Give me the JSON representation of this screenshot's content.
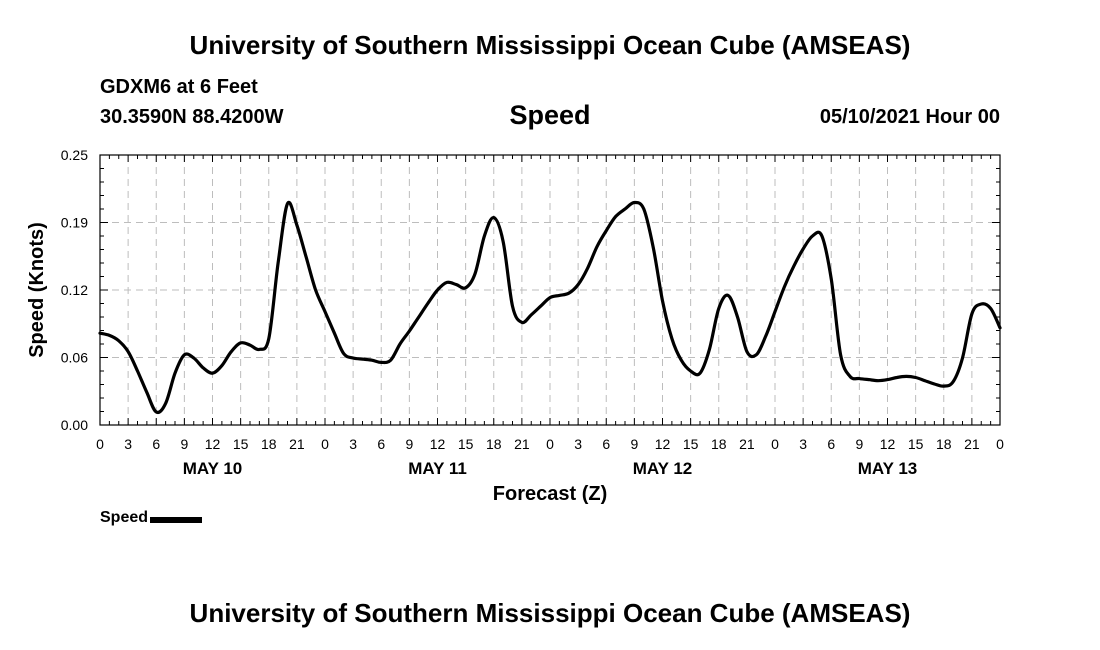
{
  "header": {
    "title": "University of Southern Mississippi Ocean Cube (AMSEAS)",
    "station": "GDXM6 at 6 Feet",
    "coords": "30.3590N  88.4200W",
    "plot_title": "Speed",
    "timestamp": "05/10/2021 Hour 00"
  },
  "footer": {
    "title": "University of Southern Mississippi Ocean Cube (AMSEAS)"
  },
  "legend": {
    "label": "Speed"
  },
  "chart_data": {
    "type": "line",
    "title": "Speed",
    "xlabel": "Forecast (Z)",
    "ylabel": "Speed (Knots)",
    "ylim": [
      0,
      0.25
    ],
    "xlim": [
      0,
      96
    ],
    "yticks": [
      "0.00",
      "0.06",
      "0.12",
      "0.19",
      "0.25"
    ],
    "ytick_values": [
      0,
      0.0625,
      0.125,
      0.1875,
      0.25
    ],
    "xtick_labels": [
      "0",
      "3",
      "6",
      "9",
      "12",
      "15",
      "18",
      "21",
      "0",
      "3",
      "6",
      "9",
      "12",
      "15",
      "18",
      "21",
      "0",
      "3",
      "6",
      "9",
      "12",
      "15",
      "18",
      "21",
      "0",
      "3",
      "6",
      "9",
      "12",
      "15",
      "18",
      "21",
      "0"
    ],
    "day_labels": [
      {
        "label": "MAY 10",
        "hour": 12
      },
      {
        "label": "MAY 11",
        "hour": 36
      },
      {
        "label": "MAY 12",
        "hour": 60
      },
      {
        "label": "MAY 13",
        "hour": 84
      }
    ],
    "grid": true,
    "series": [
      {
        "name": "Speed",
        "color": "#000000",
        "x": [
          0,
          1,
          2,
          3,
          4,
          5,
          6,
          7,
          8,
          9,
          10,
          11,
          12,
          13,
          14,
          15,
          16,
          17,
          18,
          19,
          20,
          21,
          22,
          23,
          24,
          25,
          26,
          27,
          28,
          29,
          30,
          31,
          32,
          33,
          34,
          35,
          36,
          37,
          38,
          39,
          40,
          41,
          42,
          43,
          44,
          45,
          46,
          47,
          48,
          49,
          50,
          51,
          52,
          53,
          54,
          55,
          56,
          57,
          58,
          59,
          60,
          61,
          62,
          63,
          64,
          65,
          66,
          67,
          68,
          69,
          70,
          71,
          72,
          73,
          74,
          75,
          76,
          77,
          78,
          79,
          80,
          81,
          82,
          83,
          84,
          85,
          86,
          87,
          88,
          89,
          90,
          91,
          92,
          93,
          94,
          95,
          96
        ],
        "values": [
          0.085,
          0.083,
          0.078,
          0.068,
          0.05,
          0.03,
          0.012,
          0.02,
          0.048,
          0.065,
          0.062,
          0.053,
          0.048,
          0.055,
          0.068,
          0.076,
          0.074,
          0.07,
          0.08,
          0.15,
          0.205,
          0.185,
          0.155,
          0.125,
          0.105,
          0.085,
          0.066,
          0.062,
          0.061,
          0.06,
          0.058,
          0.06,
          0.075,
          0.087,
          0.1,
          0.113,
          0.125,
          0.132,
          0.13,
          0.127,
          0.14,
          0.175,
          0.192,
          0.17,
          0.11,
          0.095,
          0.102,
          0.11,
          0.118,
          0.12,
          0.122,
          0.13,
          0.145,
          0.165,
          0.18,
          0.193,
          0.2,
          0.206,
          0.2,
          0.165,
          0.115,
          0.08,
          0.06,
          0.05,
          0.048,
          0.07,
          0.108,
          0.12,
          0.1,
          0.068,
          0.065,
          0.082,
          0.105,
          0.128,
          0.147,
          0.163,
          0.175,
          0.175,
          0.135,
          0.065,
          0.045,
          0.043,
          0.042,
          0.041,
          0.042,
          0.044,
          0.045,
          0.044,
          0.041,
          0.038,
          0.036,
          0.04,
          0.062,
          0.103,
          0.112,
          0.108,
          0.09
        ]
      }
    ]
  }
}
